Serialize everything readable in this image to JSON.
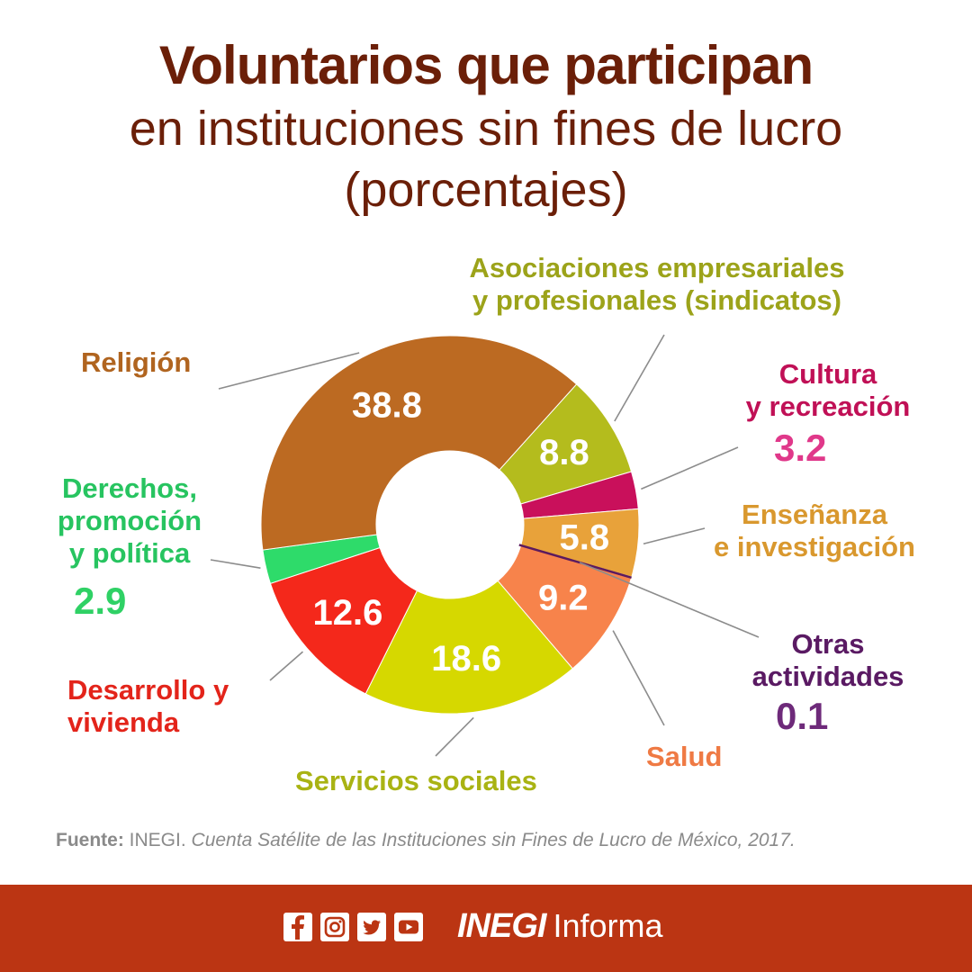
{
  "title": {
    "line1": "Voluntarios que participan",
    "line2": "en instituciones sin fines de lucro",
    "line3": "(porcentajes)"
  },
  "chart_data": {
    "type": "pie",
    "donut": true,
    "slices": [
      {
        "id": "asociaciones",
        "label_lines": [
          "Asociaciones empresariales",
          "y profesionales (sindicatos)"
        ],
        "value": 8.8,
        "value_text": "8.8",
        "value_inside": true,
        "color": "#b4bc1d",
        "label_color": "#9ca31a"
      },
      {
        "id": "cultura",
        "label_lines": [
          "Cultura",
          "y recreación"
        ],
        "value": 3.2,
        "value_text": "3.2",
        "value_inside": false,
        "color": "#c9105b",
        "label_color": "#c01056",
        "value_color": "#e0388a"
      },
      {
        "id": "ensenanza",
        "label_lines": [
          "Enseñanza",
          "e investigación"
        ],
        "value": 5.8,
        "value_text": "5.8",
        "value_inside": true,
        "color": "#e8a23a",
        "label_color": "#d9982e"
      },
      {
        "id": "otras",
        "label_lines": [
          "Otras",
          "actividades"
        ],
        "value": 0.1,
        "value_text": "0.1",
        "value_inside": false,
        "color": "#5c1a5e",
        "label_color": "#5a1a63",
        "value_color": "#6e2a7a"
      },
      {
        "id": "salud",
        "label_lines": [
          "Salud"
        ],
        "value": 9.2,
        "value_text": "9.2",
        "value_inside": true,
        "color": "#f7834b",
        "label_color": "#ef7a44"
      },
      {
        "id": "servicios",
        "label_lines": [
          "Servicios sociales"
        ],
        "value": 18.6,
        "value_text": "18.6",
        "value_inside": true,
        "color": "#d6d800",
        "label_color": "#a9b313"
      },
      {
        "id": "desarrollo",
        "label_lines": [
          "Desarrollo y",
          "vivienda"
        ],
        "value": 12.6,
        "value_text": "12.6",
        "value_inside": true,
        "color": "#f4281b",
        "label_color": "#e3241a"
      },
      {
        "id": "derechos",
        "label_lines": [
          "Derechos,",
          "promoción",
          "y política"
        ],
        "value": 2.9,
        "value_text": "2.9",
        "value_inside": false,
        "color": "#2edb6a",
        "label_color": "#27c460",
        "value_color": "#2fd165"
      },
      {
        "id": "religion",
        "label_lines": [
          "Religión"
        ],
        "value": 38.8,
        "value_text": "38.8",
        "value_inside": true,
        "color": "#bc6a22",
        "label_color": "#b0641f"
      }
    ]
  },
  "source": {
    "label": "Fuente:",
    "org": "INEGI.",
    "title": "Cuenta Satélite de las Instituciones sin Fines de Lucro de México, 2017."
  },
  "footer": {
    "social_icons": [
      "facebook-icon",
      "instagram-icon",
      "twitter-icon",
      "youtube-icon"
    ],
    "brand_bold": "INEGI",
    "brand_light": "Informa",
    "background": "#bb3513"
  }
}
